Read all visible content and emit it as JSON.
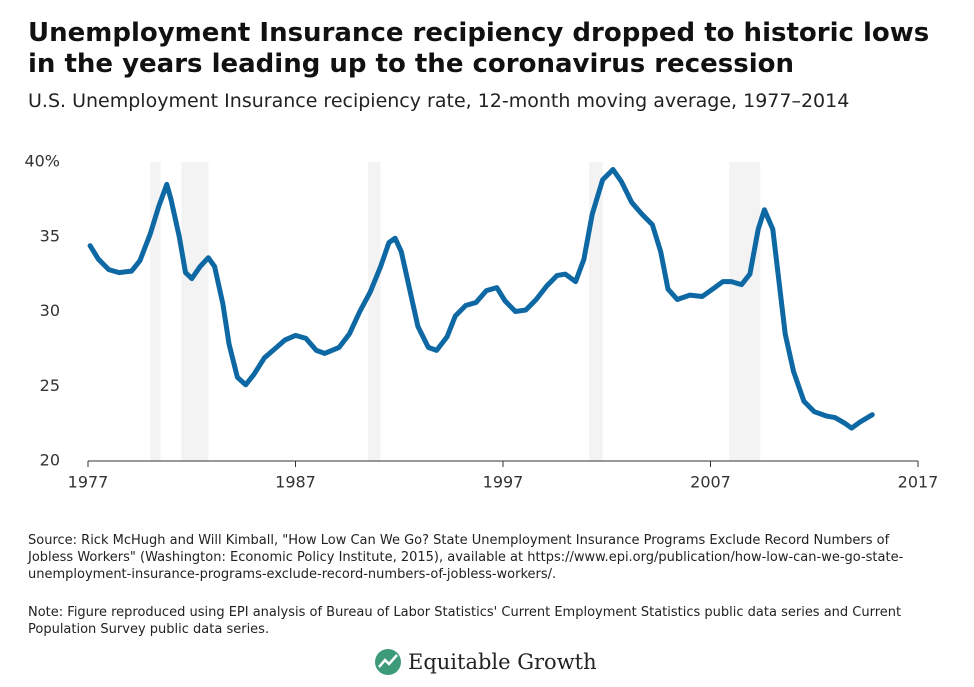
{
  "chart_data": {
    "type": "line",
    "title": "Unemployment Insurance recipiency dropped to historic lows in the years leading up to the coronavirus recession",
    "subtitle": "U.S. Unemployment Insurance recipiency rate, 12-month moving average, 1977–2014",
    "series": [
      {
        "color": "#0e68a4",
        "x": [
          1977.1,
          1977.5,
          1978.0,
          1978.5,
          1979.1,
          1979.5,
          1980.0,
          1980.4,
          1980.8,
          1981.0,
          1981.4,
          1981.7,
          1982.0,
          1982.4,
          1982.8,
          1983.1,
          1983.5,
          1983.8,
          1984.2,
          1984.6,
          1985.0,
          1985.5,
          1986.0,
          1986.5,
          1987.0,
          1987.5,
          1988.0,
          1988.4,
          1989.1,
          1989.6,
          1990.1,
          1990.6,
          1991.1,
          1991.5,
          1991.8,
          1992.1,
          1992.5,
          1992.9,
          1993.4,
          1993.8,
          1994.3,
          1994.7,
          1995.2,
          1995.7,
          1996.2,
          1996.7,
          1997.1,
          1997.6,
          1998.1,
          1998.6,
          1999.1,
          1999.6,
          2000.0,
          2000.5,
          2000.9,
          2001.3,
          2001.8,
          2002.3,
          2002.7,
          2003.2,
          2003.7,
          2004.2,
          2004.6,
          2004.95,
          2005.4,
          2006.0,
          2006.6,
          2007.1,
          2007.6,
          2008.0,
          2008.5,
          2008.9,
          2009.3,
          2009.6,
          2010.0,
          2010.3,
          2010.6,
          2011.0,
          2011.5,
          2012.0,
          2012.6,
          2013.0,
          2013.5,
          2013.8,
          2014.2,
          2014.8
        ],
        "values": [
          34.4,
          33.5,
          32.8,
          32.6,
          32.7,
          33.4,
          35.2,
          37.0,
          38.5,
          37.5,
          35.0,
          32.6,
          32.2,
          33.0,
          33.6,
          33.0,
          30.5,
          27.8,
          25.6,
          25.1,
          25.8,
          26.9,
          27.5,
          28.1,
          28.4,
          28.2,
          27.4,
          27.2,
          27.6,
          28.5,
          30.0,
          31.3,
          33.0,
          34.6,
          34.9,
          34.0,
          31.5,
          29.0,
          27.6,
          27.4,
          28.3,
          29.7,
          30.4,
          30.6,
          31.4,
          31.6,
          30.7,
          30.0,
          30.1,
          30.8,
          31.7,
          32.4,
          32.5,
          32.0,
          33.5,
          36.5,
          38.8,
          39.5,
          38.7,
          37.3,
          36.5,
          35.8,
          34.0,
          31.5,
          30.8,
          31.1,
          31.0,
          31.5,
          32.0,
          32.0,
          31.8,
          32.5,
          35.5,
          36.8,
          35.5,
          32.0,
          28.5,
          26.0,
          24.0,
          23.3,
          23.0,
          22.9,
          22.5,
          22.2,
          22.6,
          23.1
        ]
      }
    ],
    "recessions": [
      [
        1980.0,
        1980.5
      ],
      [
        1981.5,
        1982.8
      ],
      [
        1990.5,
        1991.1
      ],
      [
        2001.15,
        2001.8
      ],
      [
        2007.9,
        2009.4
      ]
    ],
    "recession_color": "#f3f3f3",
    "xlim": [
      1977,
      2017
    ],
    "xticks": [
      1977,
      1987,
      1997,
      2007,
      2017
    ],
    "ylim": [
      20,
      40
    ],
    "yticks": [
      20,
      25,
      30,
      35,
      {
        "value": 40,
        "label": "40%"
      }
    ],
    "source": "Source: Rick McHugh and Will Kimball, \"How Low Can We Go? State Unemployment Insurance Programs Exclude Record Numbers of Jobless Workers\" (Washington: Economic Policy Institute, 2015), available at https://www.epi.org/publication/how-low-can-we-go-state-unemployment-insurance-programs-exclude-record-numbers-of-jobless-workers/.",
    "note": "Note: Figure reproduced using EPI analysis of Bureau of Labor Statistics' Current Employment Statistics public data series and Current Population Survey public data series.",
    "brand": "Equitable Growth"
  }
}
